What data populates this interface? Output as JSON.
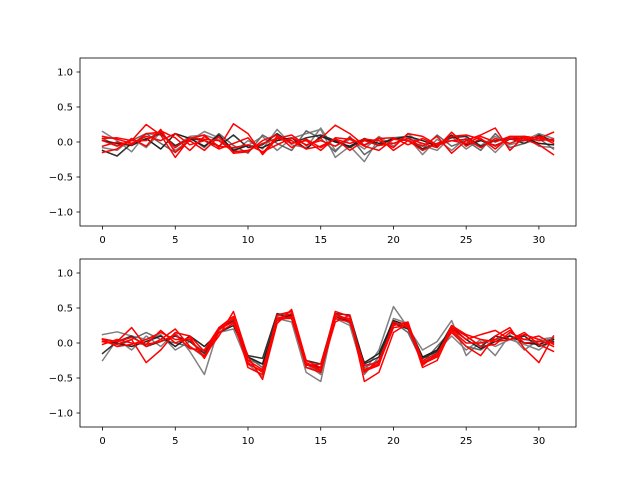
{
  "chart_data": [
    {
      "type": "line",
      "xlim": [
        -1.55,
        32.55
      ],
      "ylim": [
        -1.2,
        1.2
      ],
      "xticks": [
        0,
        5,
        10,
        15,
        20,
        25,
        30
      ],
      "xtick_labels": [
        "0",
        "5",
        "10",
        "15",
        "20",
        "25",
        "30"
      ],
      "yticks": [
        -1.0,
        -0.5,
        0.0,
        0.5,
        1.0
      ],
      "ytick_labels": [
        "−1.0",
        "−0.5",
        "0.0",
        "0.5",
        "1.0"
      ],
      "grid": false,
      "series": [
        {
          "color": "#808080",
          "values": [
            0.15,
            0.02,
            -0.14,
            0.12,
            0.1,
            -0.06,
            0.08,
            0.1,
            0.03,
            -0.1,
            -0.05,
            0.08,
            -0.12,
            0.05,
            0.12,
            0.18,
            -0.22,
            -0.06,
            -0.28,
            0.05,
            -0.02,
            0.06,
            -0.18,
            0.04,
            -0.12,
            0.06,
            -0.05,
            0.08,
            -0.04,
            0.02,
            0.12,
            0.05
          ]
        },
        {
          "color": "#808080",
          "values": [
            -0.08,
            -0.12,
            0.05,
            -0.08,
            0.14,
            -0.12,
            0.02,
            0.15,
            0.06,
            -0.15,
            0.02,
            -0.1,
            0.18,
            -0.04,
            -0.08,
            0.2,
            -0.12,
            0.04,
            -0.1,
            0.08,
            -0.06,
            0.12,
            -0.05,
            -0.12,
            0.08,
            -0.1,
            0.04,
            -0.15,
            0.06,
            0.08,
            -0.06,
            -0.08
          ]
        },
        {
          "color": "#666666",
          "values": [
            0.05,
            -0.05,
            0.02,
            0.12,
            -0.02,
            -0.15,
            0.06,
            -0.08,
            0.12,
            -0.05,
            -0.16,
            0.1,
            -0.02,
            -0.12,
            0.16,
            0.05,
            -0.14,
            0.08,
            -0.18,
            -0.04,
            0.06,
            0.08,
            -0.1,
            0.1,
            -0.06,
            0.02,
            -0.12,
            0.12,
            -0.08,
            -0.02,
            0.05,
            -0.1
          ]
        },
        {
          "color": "#2f2f2f",
          "values": [
            -0.12,
            -0.2,
            -0.02,
            0.04,
            0.12,
            -0.05,
            0.05,
            0.02,
            -0.06,
            0.1,
            -0.08,
            -0.04,
            0.12,
            -0.02,
            0.06,
            0.1,
            0.02,
            -0.08,
            0.04,
            -0.05,
            0.05,
            0.02,
            -0.1,
            -0.02,
            0.06,
            0.08,
            -0.06,
            0.02,
            0.05,
            -0.02,
            0.1,
            0.01
          ]
        },
        {
          "color": "#202020",
          "values": [
            0.02,
            -0.02,
            -0.05,
            0.05,
            -0.1,
            0.12,
            0.05,
            -0.06,
            0.1,
            -0.12,
            -0.05,
            -0.08,
            0.02,
            0.06,
            -0.1,
            0.08,
            0.0,
            -0.06,
            0.05,
            -0.02,
            0.04,
            0.08,
            0.02,
            -0.06,
            0.1,
            -0.04,
            0.02,
            -0.05,
            0.04,
            0.06,
            -0.02,
            -0.04
          ]
        },
        {
          "color": "#ff0000",
          "values": [
            0.05,
            0.06,
            0.02,
            0.25,
            0.1,
            -0.22,
            0.05,
            0.1,
            -0.08,
            0.26,
            0.12,
            -0.18,
            0.05,
            0.1,
            -0.05,
            0.05,
            0.24,
            0.12,
            -0.05,
            0.06,
            -0.12,
            0.02,
            -0.06,
            0.08,
            -0.16,
            0.02,
            0.1,
            0.2,
            -0.12,
            0.08,
            0.05,
            0.14
          ]
        },
        {
          "color": "#ff0000",
          "values": [
            -0.15,
            -0.1,
            0.05,
            -0.06,
            0.18,
            -0.15,
            0.02,
            -0.12,
            0.08,
            -0.16,
            -0.14,
            0.02,
            0.1,
            -0.08,
            0.04,
            -0.08,
            0.05,
            -0.12,
            0.02,
            -0.05,
            -0.02,
            0.05,
            -0.02,
            -0.08,
            0.14,
            -0.06,
            0.05,
            -0.1,
            0.08,
            0.04,
            -0.04,
            -0.18
          ]
        },
        {
          "color": "#ff0000",
          "values": [
            0.08,
            0.04,
            -0.02,
            0.08,
            0.02,
            0.12,
            -0.04,
            0.02,
            -0.1,
            -0.02,
            0.06,
            -0.16,
            0.08,
            -0.02,
            0.02,
            -0.12,
            0.06,
            0.04,
            -0.04,
            0.05,
            0.06,
            -0.04,
            0.05,
            -0.05,
            0.02,
            0.04,
            -0.08,
            0.05,
            -0.02,
            0.06,
            0.02,
            0.04
          ]
        },
        {
          "color": "#ff0000",
          "values": [
            -0.06,
            0.0,
            -0.04,
            0.12,
            0.14,
            -0.08,
            0.06,
            0.04,
            0.02,
            -0.14,
            -0.12,
            -0.02,
            0.05,
            0.02,
            -0.1,
            -0.06,
            0.04,
            -0.02,
            0.04,
            0.02,
            -0.08,
            0.12,
            0.08,
            -0.04,
            0.08,
            0.1,
            0.04,
            -0.06,
            0.05,
            0.02,
            0.08,
            -0.02
          ]
        },
        {
          "color": "#ff0000",
          "values": [
            0.02,
            -0.06,
            0.02,
            0.02,
            0.16,
            0.06,
            -0.12,
            0.08,
            -0.06,
            -0.08,
            -0.04,
            -0.14,
            -0.04,
            0.06,
            -0.04,
            0.02,
            -0.06,
            0.06,
            -0.06,
            -0.12,
            0.04,
            0.02,
            -0.12,
            -0.02,
            0.02,
            -0.02,
            0.08,
            0.0,
            0.08,
            0.08,
            0.05,
            0.02
          ]
        }
      ]
    },
    {
      "type": "line",
      "xlim": [
        -1.55,
        32.55
      ],
      "ylim": [
        -1.2,
        1.2
      ],
      "xticks": [
        0,
        5,
        10,
        15,
        20,
        25,
        30
      ],
      "xtick_labels": [
        "0",
        "5",
        "10",
        "15",
        "20",
        "25",
        "30"
      ],
      "yticks": [
        -1.0,
        -0.5,
        0.0,
        0.5,
        1.0
      ],
      "ytick_labels": [
        "−1.0",
        "−0.5",
        "0.0",
        "0.5",
        "1.0"
      ],
      "grid": false,
      "series": [
        {
          "color": "#808080",
          "values": [
            0.12,
            0.16,
            0.1,
            0.05,
            0.12,
            -0.1,
            0.02,
            -0.12,
            0.15,
            0.2,
            -0.3,
            -0.48,
            0.35,
            0.3,
            -0.42,
            -0.55,
            0.4,
            0.28,
            -0.4,
            -0.1,
            0.52,
            0.22,
            -0.1,
            0.02,
            0.32,
            -0.18,
            0.02,
            -0.18,
            0.12,
            -0.1,
            0.05,
            0.08
          ]
        },
        {
          "color": "#808080",
          "values": [
            -0.25,
            0.05,
            -0.1,
            0.1,
            -0.05,
            0.15,
            -0.12,
            -0.45,
            0.22,
            0.3,
            -0.25,
            -0.3,
            0.42,
            0.4,
            -0.3,
            -0.45,
            0.35,
            0.25,
            -0.45,
            -0.2,
            0.35,
            0.28,
            -0.3,
            -0.12,
            0.1,
            -0.1,
            0.05,
            -0.05,
            0.05,
            -0.02,
            -0.1,
            0.05
          ]
        },
        {
          "color": "#666666",
          "values": [
            0.05,
            -0.05,
            0.05,
            0.15,
            0.05,
            0.0,
            -0.05,
            -0.2,
            0.18,
            0.35,
            -0.2,
            -0.35,
            0.38,
            0.45,
            -0.35,
            -0.4,
            0.4,
            0.32,
            -0.35,
            -0.25,
            0.3,
            0.15,
            -0.28,
            -0.05,
            0.18,
            -0.05,
            -0.1,
            0.05,
            0.1,
            0.05,
            0.02,
            0.06
          ]
        },
        {
          "color": "#2f2f2f",
          "values": [
            -0.15,
            0.02,
            0.1,
            -0.05,
            0.02,
            0.1,
            0.02,
            -0.15,
            0.2,
            0.32,
            -0.18,
            -0.22,
            0.42,
            0.35,
            -0.25,
            -0.3,
            0.42,
            0.4,
            -0.3,
            -0.2,
            0.28,
            0.2,
            -0.22,
            -0.12,
            0.25,
            0.1,
            -0.05,
            0.1,
            0.05,
            0.1,
            -0.05,
            0.02
          ]
        },
        {
          "color": "#202020",
          "values": [
            0.02,
            0.0,
            -0.05,
            0.02,
            0.1,
            -0.05,
            0.1,
            -0.05,
            0.15,
            0.25,
            -0.2,
            -0.3,
            0.35,
            0.4,
            -0.3,
            -0.35,
            0.38,
            0.3,
            -0.28,
            -0.15,
            0.32,
            0.25,
            -0.2,
            -0.1,
            0.22,
            0.05,
            -0.08,
            0.02,
            0.1,
            0.0,
            -0.02,
            0.05
          ]
        },
        {
          "color": "#ff0000",
          "values": [
            0.05,
            0.02,
            0.22,
            -0.05,
            0.05,
            0.2,
            -0.05,
            -0.18,
            0.1,
            0.45,
            -0.2,
            -0.52,
            0.28,
            0.48,
            -0.25,
            -0.35,
            0.45,
            0.38,
            -0.55,
            -0.42,
            0.15,
            0.28,
            -0.35,
            -0.25,
            0.2,
            0.05,
            0.12,
            0.18,
            0.05,
            0.15,
            -0.02,
            -0.12
          ]
        },
        {
          "color": "#ff0000",
          "values": [
            0.02,
            -0.02,
            0.05,
            -0.28,
            -0.1,
            0.15,
            0.1,
            -0.12,
            0.2,
            0.35,
            -0.35,
            -0.45,
            0.4,
            0.45,
            -0.3,
            -0.4,
            0.3,
            0.4,
            -0.42,
            -0.25,
            0.25,
            0.3,
            -0.32,
            -0.15,
            0.15,
            -0.05,
            -0.18,
            0.1,
            0.22,
            -0.08,
            -0.28,
            0.1
          ]
        },
        {
          "color": "#ff0000",
          "values": [
            0.05,
            -0.05,
            -0.02,
            0.05,
            0.15,
            0.05,
            0.05,
            -0.2,
            0.2,
            0.3,
            -0.3,
            -0.4,
            0.35,
            0.42,
            -0.28,
            -0.38,
            0.42,
            0.32,
            -0.38,
            -0.3,
            0.22,
            0.25,
            -0.28,
            -0.18,
            0.22,
            0.1,
            -0.05,
            -0.02,
            0.15,
            0.05,
            0.1,
            -0.02
          ]
        },
        {
          "color": "#ff0000",
          "values": [
            -0.02,
            0.05,
            0.0,
            -0.02,
            0.18,
            0.0,
            0.08,
            -0.22,
            0.15,
            0.28,
            -0.25,
            -0.38,
            0.35,
            0.35,
            -0.32,
            -0.3,
            0.38,
            0.35,
            -0.4,
            -0.32,
            0.3,
            0.22,
            -0.3,
            -0.2,
            0.25,
            0.12,
            0.05,
            0.02,
            0.05,
            0.12,
            0.05,
            -0.05
          ]
        },
        {
          "color": "#ff0000",
          "values": [
            0.06,
            0.02,
            0.08,
            -0.02,
            0.02,
            0.12,
            -0.08,
            -0.1,
            0.22,
            0.38,
            -0.28,
            -0.42,
            0.32,
            0.38,
            -0.35,
            -0.42,
            0.35,
            0.3,
            -0.32,
            -0.28,
            0.26,
            0.28,
            -0.25,
            -0.15,
            0.18,
            0.0,
            0.0,
            0.05,
            0.18,
            0.0,
            0.02,
            0.0
          ]
        }
      ]
    }
  ]
}
